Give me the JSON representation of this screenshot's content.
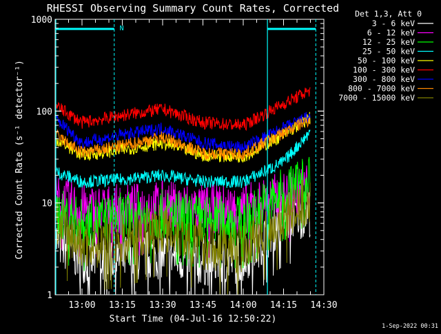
{
  "chart_data": {
    "type": "line",
    "title": "RHESSI Observing Summary Count Rates, Corrected",
    "xlabel": "Start Time (04-Jul-16 12:50:22)",
    "ylabel": "Corrected Count Rate (s⁻¹ detector⁻¹)",
    "y_scale": "log",
    "ylim": [
      1,
      1000
    ],
    "xlim_minutes_after_1250": [
      0,
      100
    ],
    "x_tick_labels": [
      "13:00",
      "13:15",
      "13:30",
      "13:45",
      "14:00",
      "14:15",
      "14:30"
    ],
    "x_tick_minutes": [
      10,
      25,
      40,
      55,
      70,
      85,
      100
    ],
    "y_tick_labels": [
      "1",
      "10",
      "100",
      "1000"
    ],
    "y_tick_values": [
      1,
      10,
      100,
      1000
    ],
    "legend_title": "Det 1,3, Att 0",
    "legend_position": "right",
    "series": [
      {
        "name": "3 - 6 keV",
        "color": "#ffffff",
        "values_at_times": {
          "x": [
            0,
            10,
            25,
            40,
            55,
            70,
            85,
            95
          ],
          "y": [
            4,
            2.5,
            2.5,
            2.8,
            2.3,
            2.5,
            7,
            8
          ]
        }
      },
      {
        "name": "6 - 12 keV",
        "color": "#ff00ff",
        "values_at_times": {
          "x": [
            0,
            10,
            25,
            40,
            55,
            70,
            85,
            95
          ],
          "y": [
            11,
            8.5,
            8.5,
            9.5,
            8.5,
            8.5,
            12,
            15
          ]
        }
      },
      {
        "name": "12 - 25 keV",
        "color": "#00ff00",
        "values_at_times": {
          "x": [
            0,
            10,
            25,
            40,
            55,
            70,
            85,
            95
          ],
          "y": [
            8,
            6,
            7,
            7.5,
            6.5,
            6.5,
            13,
            20
          ]
        }
      },
      {
        "name": "25 - 50 keV",
        "color": "#00ffff",
        "values_at_times": {
          "x": [
            0,
            10,
            25,
            40,
            55,
            70,
            85,
            95
          ],
          "y": [
            22,
            17,
            18,
            20,
            17,
            17,
            28,
            60
          ]
        }
      },
      {
        "name": "50 - 100 keV",
        "color": "#ffff00",
        "values_at_times": {
          "x": [
            0,
            10,
            25,
            40,
            55,
            70,
            85,
            95
          ],
          "y": [
            50,
            33,
            38,
            45,
            33,
            32,
            55,
            85
          ]
        }
      },
      {
        "name": "100 - 300 keV",
        "color": "#ff0000",
        "values_at_times": {
          "x": [
            0,
            10,
            25,
            40,
            55,
            70,
            85,
            95
          ],
          "y": [
            115,
            75,
            90,
            105,
            75,
            70,
            120,
            170
          ]
        }
      },
      {
        "name": "300 - 800 keV",
        "color": "#0000ff",
        "values_at_times": {
          "x": [
            0,
            10,
            25,
            40,
            55,
            70,
            85,
            95
          ],
          "y": [
            85,
            45,
            55,
            65,
            45,
            40,
            65,
            88
          ]
        }
      },
      {
        "name": "800 - 7000 keV",
        "color": "#ff8800",
        "values_at_times": {
          "x": [
            0,
            10,
            25,
            40,
            55,
            70,
            85,
            95
          ],
          "y": [
            55,
            35,
            42,
            52,
            35,
            34,
            58,
            82
          ]
        }
      },
      {
        "name": "7000 - 15000 keV",
        "color": "#808000",
        "values_at_times": {
          "x": [
            0,
            10,
            25,
            40,
            55,
            70,
            85,
            95
          ],
          "y": [
            6,
            3.5,
            4,
            5.5,
            3.5,
            3.2,
            7,
            11
          ]
        }
      }
    ],
    "annotations": [
      "N"
    ],
    "footer_text": "1-Sep-2022 00:31"
  }
}
